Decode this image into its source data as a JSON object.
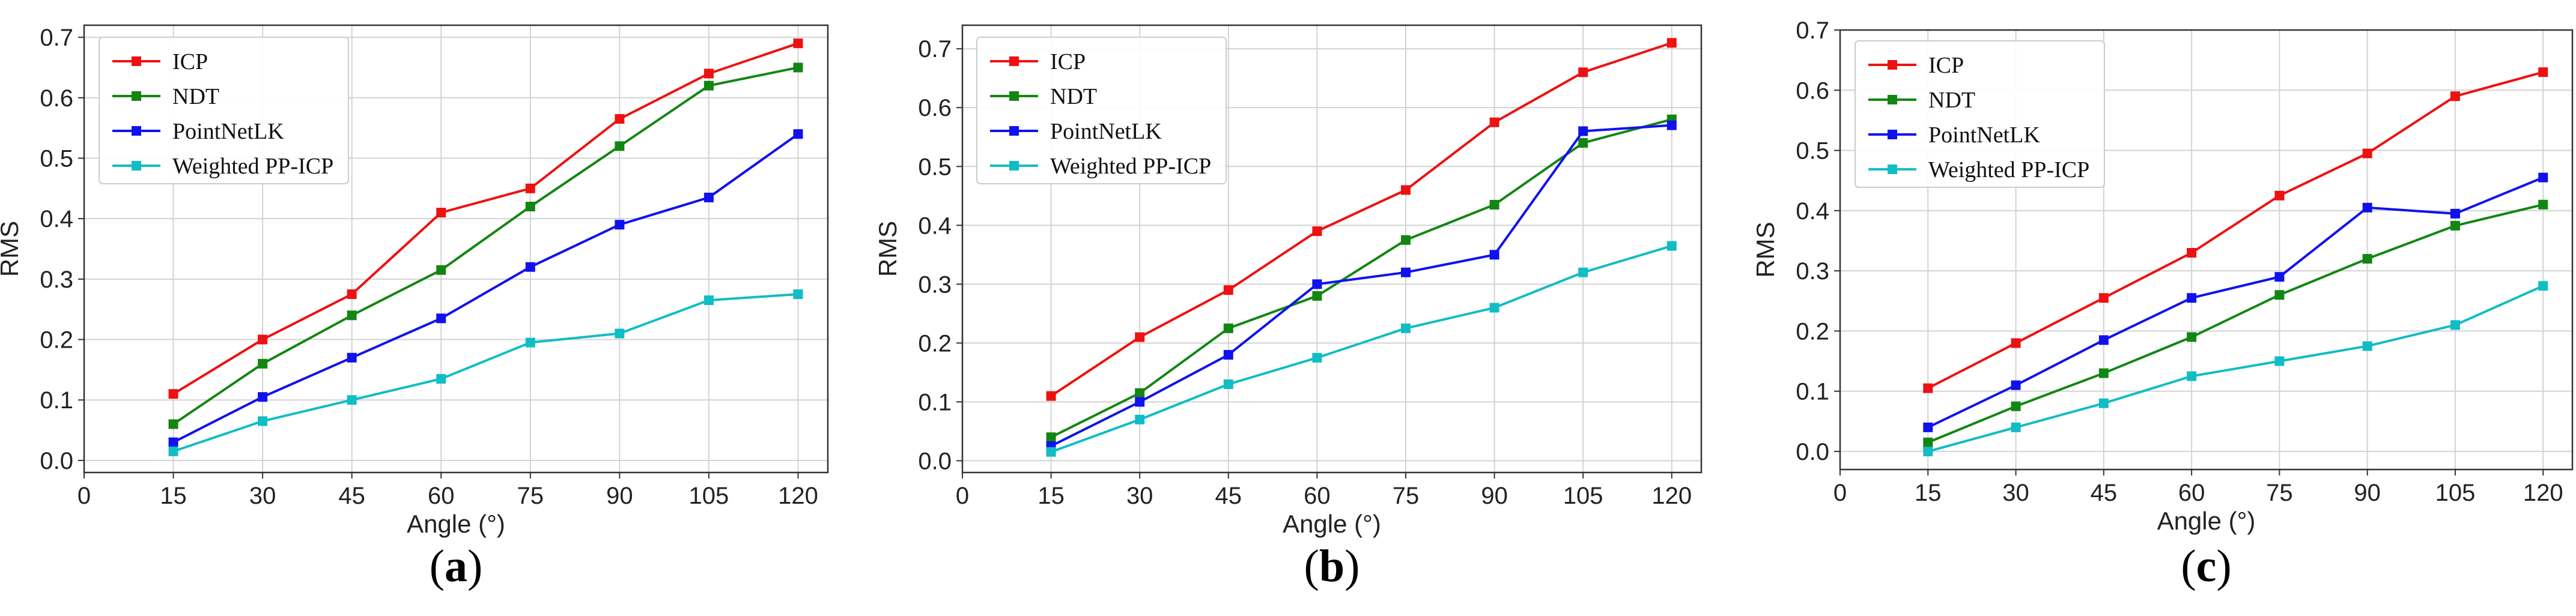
{
  "colors": {
    "ICP": "#ee1111",
    "NDT": "#128612",
    "PointNetLK": "#1111ee",
    "Weighted PP-ICP": "#11bdc4"
  },
  "chart_data": [
    {
      "type": "line",
      "panel_label": "a",
      "xlabel": "Angle (°)",
      "ylabel": "RMS",
      "x": [
        15,
        30,
        45,
        60,
        75,
        90,
        105,
        120
      ],
      "x_ticks": [
        0,
        15,
        30,
        45,
        60,
        75,
        90,
        105,
        120
      ],
      "y_ticks": [
        0.0,
        0.1,
        0.2,
        0.3,
        0.4,
        0.5,
        0.6,
        0.7
      ],
      "xlim": [
        0,
        125
      ],
      "ylim": [
        -0.02,
        0.72
      ],
      "grid": true,
      "legend_position": "top-left",
      "series": [
        {
          "name": "ICP",
          "values": [
            0.11,
            0.2,
            0.275,
            0.41,
            0.45,
            0.565,
            0.64,
            0.69
          ]
        },
        {
          "name": "NDT",
          "values": [
            0.06,
            0.16,
            0.24,
            0.315,
            0.42,
            0.52,
            0.62,
            0.65
          ]
        },
        {
          "name": "PointNetLK",
          "values": [
            0.03,
            0.105,
            0.17,
            0.235,
            0.32,
            0.39,
            0.435,
            0.54
          ]
        },
        {
          "name": "Weighted PP-ICP",
          "values": [
            0.015,
            0.065,
            0.1,
            0.135,
            0.195,
            0.21,
            0.265,
            0.275
          ]
        }
      ]
    },
    {
      "type": "line",
      "panel_label": "b",
      "xlabel": "Angle (°)",
      "ylabel": "RMS",
      "x": [
        15,
        30,
        45,
        60,
        75,
        90,
        105,
        120
      ],
      "x_ticks": [
        0,
        15,
        30,
        45,
        60,
        75,
        90,
        105,
        120
      ],
      "y_ticks": [
        0.0,
        0.1,
        0.2,
        0.3,
        0.4,
        0.5,
        0.6,
        0.7
      ],
      "xlim": [
        0,
        125
      ],
      "ylim": [
        -0.02,
        0.74
      ],
      "grid": true,
      "legend_position": "top-left",
      "series": [
        {
          "name": "ICP",
          "values": [
            0.11,
            0.21,
            0.29,
            0.39,
            0.46,
            0.575,
            0.66,
            0.71
          ]
        },
        {
          "name": "NDT",
          "values": [
            0.04,
            0.115,
            0.225,
            0.28,
            0.375,
            0.435,
            0.54,
            0.58
          ]
        },
        {
          "name": "PointNetLK",
          "values": [
            0.025,
            0.1,
            0.18,
            0.3,
            0.32,
            0.35,
            0.56,
            0.57
          ]
        },
        {
          "name": "Weighted PP-ICP",
          "values": [
            0.015,
            0.07,
            0.13,
            0.175,
            0.225,
            0.26,
            0.32,
            0.365
          ]
        }
      ]
    },
    {
      "type": "line",
      "panel_label": "c",
      "xlabel": "Angle (°)",
      "ylabel": "RMS",
      "x": [
        15,
        30,
        45,
        60,
        75,
        90,
        105,
        120
      ],
      "x_ticks": [
        0,
        15,
        30,
        45,
        60,
        75,
        90,
        105,
        120
      ],
      "y_ticks": [
        0.0,
        0.1,
        0.2,
        0.3,
        0.4,
        0.5,
        0.6,
        0.7
      ],
      "xlim": [
        0,
        125
      ],
      "ylim": [
        -0.03,
        0.7
      ],
      "grid": true,
      "legend_position": "top-left",
      "series": [
        {
          "name": "ICP",
          "values": [
            0.105,
            0.18,
            0.255,
            0.33,
            0.425,
            0.495,
            0.59,
            0.63
          ]
        },
        {
          "name": "NDT",
          "values": [
            0.015,
            0.075,
            0.13,
            0.19,
            0.26,
            0.32,
            0.375,
            0.41
          ]
        },
        {
          "name": "PointNetLK",
          "values": [
            0.04,
            0.11,
            0.185,
            0.255,
            0.29,
            0.405,
            0.395,
            0.455
          ]
        },
        {
          "name": "Weighted PP-ICP",
          "values": [
            0.0,
            0.04,
            0.08,
            0.125,
            0.15,
            0.175,
            0.21,
            0.275
          ]
        }
      ]
    }
  ]
}
